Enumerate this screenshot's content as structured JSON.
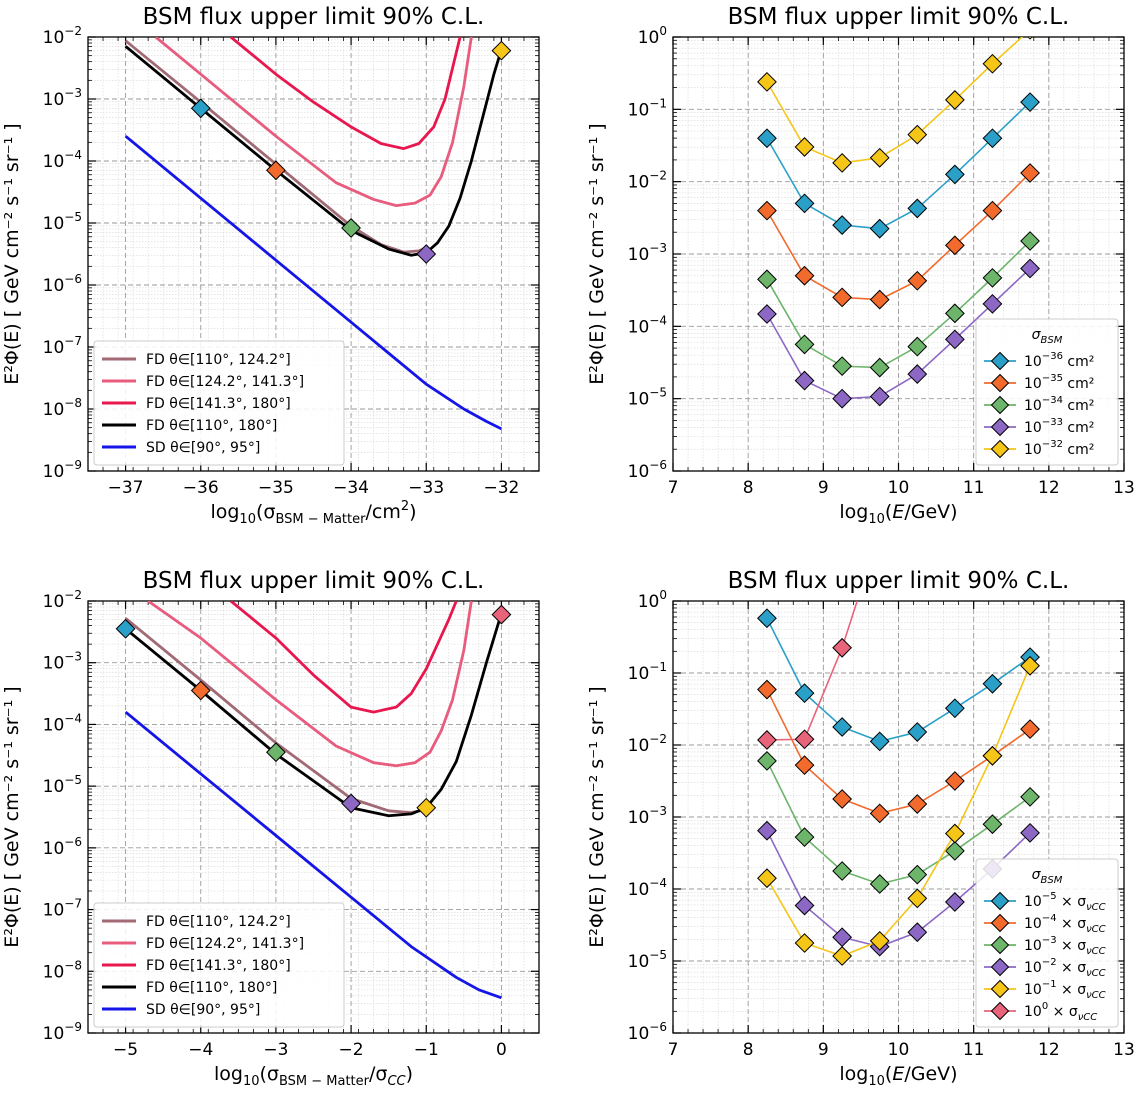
{
  "chart_data": [
    {
      "id": "tl",
      "type": "line",
      "title": "BSM flux upper limit 90% C.L.",
      "xlabel_pre": "log",
      "xlabel_sub": "10",
      "xlabel_post": "(σ",
      "xlabel_sub2": "BSM − Matter",
      "xlabel_tail": "/cm",
      "xlabel_sup": "2",
      "xlabel_end": ")",
      "ylabel": "E²Φ(E)  [ GeV cm⁻² s⁻¹ sr⁻¹ ]",
      "xlim": [
        -37.5,
        -31.5
      ],
      "ylim_log10": [
        -9,
        -2
      ],
      "xticks": [
        -37,
        -36,
        -35,
        -34,
        -33,
        -32
      ],
      "xtick_labels": [
        "−37",
        "−36",
        "−35",
        "−34",
        "−33",
        "−32"
      ],
      "yticks_exp": [
        "−9",
        "−8",
        "−7",
        "−6",
        "−5",
        "−4",
        "−3",
        "−2"
      ],
      "legend_position": "lower-left",
      "series": [
        {
          "name": "FD θ∈[110°, 124.2°]",
          "color": "#a16a75",
          "x": [
            -37,
            -36,
            -35,
            -34,
            -33.6,
            -33.3,
            -33.1,
            -33.0
          ],
          "y_log10": [
            -2.06,
            -3.05,
            -4.05,
            -5.05,
            -5.35,
            -5.47,
            -5.45,
            -5.4
          ]
        },
        {
          "name": "FD θ∈[124.2°, 141.3°]",
          "color": "#e85c7e",
          "x": [
            -36.6,
            -36,
            -35,
            -34.2,
            -33.7,
            -33.4,
            -33.15,
            -32.95,
            -32.8,
            -32.65,
            -32.5,
            -32.4
          ],
          "y_log10": [
            -2.0,
            -2.6,
            -3.6,
            -4.35,
            -4.62,
            -4.72,
            -4.68,
            -4.55,
            -4.25,
            -3.7,
            -2.8,
            -2.0
          ]
        },
        {
          "name": "FD θ∈[141.3°, 180°]",
          "color": "#e8174e",
          "x": [
            -35.6,
            -35,
            -34.5,
            -34,
            -33.6,
            -33.3,
            -33.1,
            -32.9,
            -32.75,
            -32.65,
            -32.55
          ],
          "y_log10": [
            -2.0,
            -2.6,
            -3.05,
            -3.45,
            -3.72,
            -3.8,
            -3.72,
            -3.45,
            -3.0,
            -2.5,
            -2.0
          ]
        },
        {
          "name": "FD θ∈[110°, 180°]",
          "color": "#000000",
          "x": [
            -37,
            -36,
            -35,
            -34,
            -33.5,
            -33.2,
            -33.0,
            -32.85,
            -32.7,
            -32.55,
            -32.4,
            -32.25,
            -32.1,
            -32.0
          ],
          "y_log10": [
            -2.15,
            -3.15,
            -4.15,
            -5.12,
            -5.42,
            -5.52,
            -5.48,
            -5.32,
            -5.05,
            -4.6,
            -4.0,
            -3.3,
            -2.6,
            -2.2
          ]
        },
        {
          "name": "SD θ∈[90°, 95°]",
          "color": "#1515e8",
          "x": [
            -37,
            -36,
            -35,
            -34,
            -33,
            -32.5,
            -32.2,
            -32.0
          ],
          "y_log10": [
            -3.6,
            -4.6,
            -5.6,
            -6.6,
            -7.6,
            -8.0,
            -8.2,
            -8.32
          ]
        }
      ],
      "markers": [
        {
          "color": "#2aa0c8",
          "x": -36,
          "y_log10": -3.15
        },
        {
          "color": "#f26a2c",
          "x": -35,
          "y_log10": -4.15
        },
        {
          "color": "#6cb56a",
          "x": -34,
          "y_log10": -5.08
        },
        {
          "color": "#8c68c4",
          "x": -33,
          "y_log10": -5.5
        },
        {
          "color": "#f5c518",
          "x": -32,
          "y_log10": -2.22
        }
      ]
    },
    {
      "id": "tr",
      "type": "line",
      "title": "BSM flux upper limit 90% C.L.",
      "xlabel_pre": "log",
      "xlabel_sub": "10",
      "xlabel_post": "(",
      "xlabel_italic": "E",
      "xlabel_tail": "/GeV)",
      "ylabel": "E²Φ(E)  [ GeV cm⁻² s⁻¹ sr⁻¹ ]",
      "xlim": [
        7,
        13
      ],
      "ylim_log10": [
        -6,
        0
      ],
      "xticks": [
        7,
        8,
        9,
        10,
        11,
        12,
        13
      ],
      "xtick_labels": [
        "7",
        "8",
        "9",
        "10",
        "11",
        "12",
        "13"
      ],
      "yticks_exp": [
        "−6",
        "−5",
        "−4",
        "−3",
        "−2",
        "−1",
        "0"
      ],
      "legend_title": "σ_BSM",
      "legend_position": "lower-right",
      "x": [
        8.25,
        8.75,
        9.25,
        9.75,
        10.25,
        10.75,
        11.25,
        11.75
      ],
      "series": [
        {
          "name_pre": "10",
          "name_exp": "−36",
          "name_post": " cm²",
          "color": "#2aa0c8",
          "y_log10": [
            -1.4,
            -2.3,
            -2.6,
            -2.65,
            -2.37,
            -1.9,
            -1.4,
            -0.9
          ]
        },
        {
          "name_pre": "10",
          "name_exp": "−35",
          "name_post": " cm²",
          "color": "#f26a2c",
          "y_log10": [
            -2.4,
            -3.3,
            -3.6,
            -3.63,
            -3.37,
            -2.88,
            -2.4,
            -1.88
          ]
        },
        {
          "name_pre": "10",
          "name_exp": "−34",
          "name_post": " cm²",
          "color": "#6cb56a",
          "y_log10": [
            -3.35,
            -4.25,
            -4.55,
            -4.57,
            -4.28,
            -3.82,
            -3.33,
            -2.82
          ]
        },
        {
          "name_pre": "10",
          "name_exp": "−33",
          "name_post": " cm²",
          "color": "#8c68c4",
          "y_log10": [
            -3.83,
            -4.75,
            -5.0,
            -4.97,
            -4.66,
            -4.18,
            -3.69,
            -3.2
          ]
        },
        {
          "name_pre": "10",
          "name_exp": "−32",
          "name_post": " cm²",
          "color": "#f5c518",
          "y_log10": [
            -0.62,
            -1.52,
            -1.74,
            -1.67,
            -1.35,
            -0.87,
            -0.37,
            0.1
          ]
        }
      ]
    },
    {
      "id": "bl",
      "type": "line",
      "title": "BSM flux upper limit 90% C.L.",
      "xlabel_pre": "log",
      "xlabel_sub": "10",
      "xlabel_post": "(σ",
      "xlabel_sub2": "BSM − Matter",
      "xlabel_tail": "/σ",
      "xlabel_sub3": "CC",
      "xlabel_end": ")",
      "ylabel": "E²Φ(E)  [ GeV cm⁻² s⁻¹ sr⁻¹ ]",
      "xlim": [
        -5.5,
        0.5
      ],
      "ylim_log10": [
        -9,
        -2
      ],
      "xticks": [
        -5,
        -4,
        -3,
        -2,
        -1,
        0
      ],
      "xtick_labels": [
        "−5",
        "−4",
        "−3",
        "−2",
        "−1",
        "0"
      ],
      "yticks_exp": [
        "−9",
        "−8",
        "−7",
        "−6",
        "−5",
        "−4",
        "−3",
        "−2"
      ],
      "legend_position": "lower-left",
      "series": [
        {
          "name": "FD θ∈[110°, 124.2°]",
          "color": "#a16a75",
          "x": [
            -5,
            -4,
            -3,
            -2,
            -1.5,
            -1.2,
            -1.0
          ],
          "y_log10": [
            -2.28,
            -3.28,
            -4.3,
            -5.2,
            -5.4,
            -5.43,
            -5.38
          ]
        },
        {
          "name": "FD θ∈[124.2°, 141.3°]",
          "color": "#e85c7e",
          "x": [
            -4.7,
            -4,
            -3,
            -2.2,
            -1.7,
            -1.4,
            -1.15,
            -0.95,
            -0.8,
            -0.65,
            -0.5,
            -0.4
          ],
          "y_log10": [
            -2.0,
            -2.6,
            -3.6,
            -4.35,
            -4.62,
            -4.67,
            -4.62,
            -4.45,
            -4.1,
            -3.6,
            -2.8,
            -2.0
          ]
        },
        {
          "name": "FD θ∈[141.3°, 180°]",
          "color": "#e8174e",
          "x": [
            -3.6,
            -3,
            -2.5,
            -2,
            -1.7,
            -1.4,
            -1.2,
            -1.0,
            -0.85,
            -0.7,
            -0.6
          ],
          "y_log10": [
            -2.0,
            -2.6,
            -3.2,
            -3.72,
            -3.8,
            -3.72,
            -3.5,
            -3.1,
            -2.7,
            -2.3,
            -2.0
          ]
        },
        {
          "name": "FD θ∈[110°, 180°]",
          "color": "#000000",
          "x": [
            -5,
            -4,
            -3,
            -2,
            -1.5,
            -1.2,
            -1.0,
            -0.8,
            -0.6,
            -0.4,
            -0.2,
            0.0
          ],
          "y_log10": [
            -2.45,
            -3.45,
            -4.48,
            -5.35,
            -5.48,
            -5.45,
            -5.35,
            -5.05,
            -4.6,
            -3.85,
            -3.0,
            -2.2
          ]
        },
        {
          "name": "SD θ∈[90°, 95°]",
          "color": "#1515e8",
          "x": [
            -5,
            -4,
            -3,
            -2,
            -1.2,
            -0.6,
            -0.3,
            0.0
          ],
          "y_log10": [
            -3.8,
            -4.8,
            -5.8,
            -6.8,
            -7.6,
            -8.1,
            -8.3,
            -8.43
          ]
        }
      ],
      "markers": [
        {
          "color": "#2aa0c8",
          "x": -5,
          "y_log10": -2.45
        },
        {
          "color": "#f26a2c",
          "x": -4,
          "y_log10": -3.45
        },
        {
          "color": "#6cb56a",
          "x": -3,
          "y_log10": -4.45
        },
        {
          "color": "#8c68c4",
          "x": -2,
          "y_log10": -5.28
        },
        {
          "color": "#f5c518",
          "x": -1,
          "y_log10": -5.35
        },
        {
          "color": "#e8647a",
          "x": 0,
          "y_log10": -2.22
        }
      ]
    },
    {
      "id": "br",
      "type": "line",
      "title": "BSM flux upper limit 90% C.L.",
      "xlabel_pre": "log",
      "xlabel_sub": "10",
      "xlabel_post": "(",
      "xlabel_italic": "E",
      "xlabel_tail": "/GeV)",
      "ylabel": "E²Φ(E)  [ GeV cm⁻² s⁻¹ sr⁻¹ ]",
      "xlim": [
        7,
        13
      ],
      "ylim_log10": [
        -6,
        0
      ],
      "xticks": [
        7,
        8,
        9,
        10,
        11,
        12,
        13
      ],
      "xtick_labels": [
        "7",
        "8",
        "9",
        "10",
        "11",
        "12",
        "13"
      ],
      "yticks_exp": [
        "−6",
        "−5",
        "−4",
        "−3",
        "−2",
        "−1",
        "0"
      ],
      "legend_title": "σ_BSM",
      "legend_position": "lower-right",
      "series": [
        {
          "name_pre": "10",
          "name_exp": "−5",
          "name_post": " × σ",
          "name_sub": "νCC",
          "color": "#2aa0c8",
          "x": [
            8.25,
            8.75,
            9.25,
            9.75,
            10.25,
            10.75,
            11.25,
            11.75
          ],
          "y_log10": [
            -0.24,
            -1.28,
            -1.75,
            -1.95,
            -1.82,
            -1.49,
            -1.15,
            -0.78
          ]
        },
        {
          "name_pre": "10",
          "name_exp": "−4",
          "name_post": " × σ",
          "name_sub": "νCC",
          "color": "#f26a2c",
          "x": [
            8.25,
            8.75,
            9.25,
            9.75,
            10.25,
            10.75,
            11.25,
            11.75
          ],
          "y_log10": [
            -1.23,
            -2.28,
            -2.75,
            -2.95,
            -2.82,
            -2.5,
            -2.15,
            -1.78
          ]
        },
        {
          "name_pre": "10",
          "name_exp": "−3",
          "name_post": " × σ",
          "name_sub": "νCC",
          "color": "#6cb56a",
          "x": [
            8.25,
            8.75,
            9.25,
            9.75,
            10.25,
            10.75,
            11.25,
            11.75
          ],
          "y_log10": [
            -2.22,
            -3.28,
            -3.75,
            -3.93,
            -3.8,
            -3.47,
            -3.1,
            -2.72
          ]
        },
        {
          "name_pre": "10",
          "name_exp": "−2",
          "name_post": " × σ",
          "name_sub": "νCC",
          "color": "#8c68c4",
          "x": [
            8.25,
            8.75,
            9.25,
            9.75,
            10.25,
            10.75,
            11.25,
            11.75
          ],
          "y_log10": [
            -3.19,
            -4.23,
            -4.67,
            -4.8,
            -4.6,
            -4.18,
            -3.72,
            -3.22
          ]
        },
        {
          "name_pre": "10",
          "name_exp": "−1",
          "name_post": " × σ",
          "name_sub": "νCC",
          "color": "#f5c518",
          "x": [
            8.25,
            8.75,
            9.25,
            9.75,
            10.25,
            10.75,
            11.25,
            11.75
          ],
          "y_log10": [
            -3.85,
            -4.75,
            -4.93,
            -4.72,
            -4.13,
            -3.23,
            -2.15,
            -0.9
          ]
        },
        {
          "name_pre": "10",
          "name_exp": "0",
          "name_post": " × σ",
          "name_sub": "νCC",
          "color": "#e8647a",
          "x": [
            8.25,
            8.75,
            9.25
          ],
          "y_log10": [
            -1.93,
            -1.92,
            -0.65
          ],
          "extend_to": [
            9.45,
            0.0
          ]
        }
      ]
    }
  ]
}
